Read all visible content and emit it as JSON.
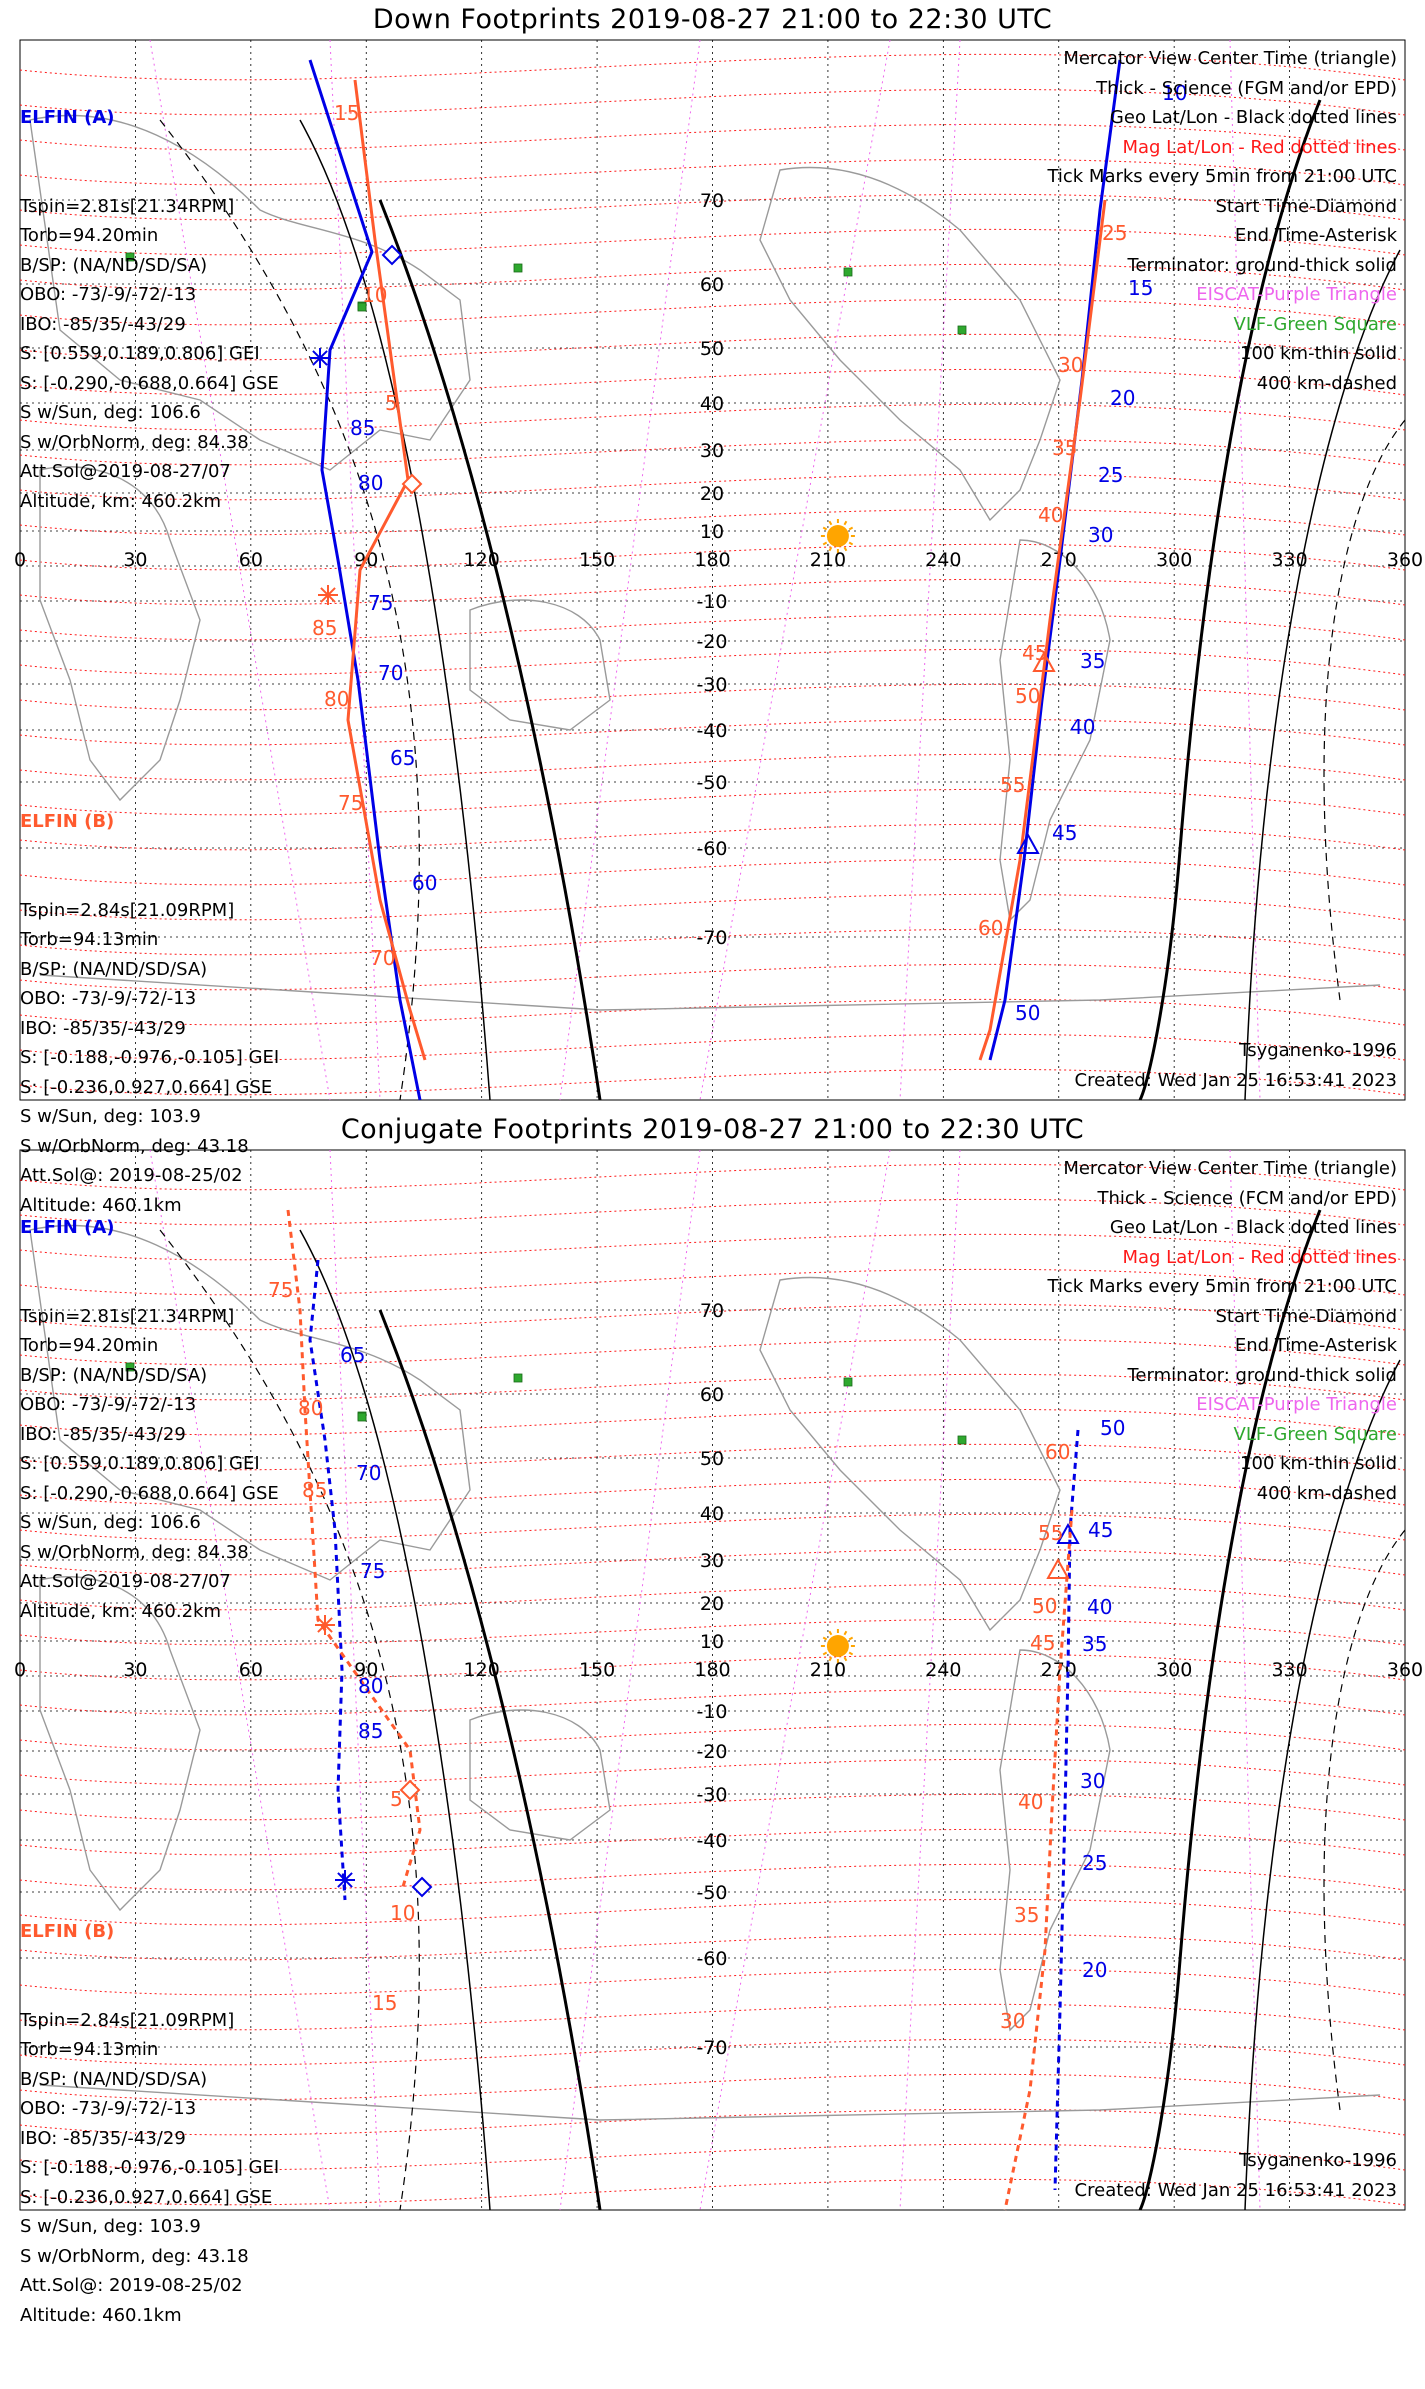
{
  "colors": {
    "sat_a": "#0000e6",
    "sat_b": "#ff5a2e",
    "mag_grid": "#ff1a1a",
    "eiscat": "#ee66ee",
    "vlf": "#2ea82e",
    "sun": "#ffa500"
  },
  "panels": [
    {
      "id": "down",
      "title": "Down Footprints 2019-08-27 21:00 to 22:30 UTC",
      "elfin_a": {
        "header": "ELFIN (A)",
        "lines": [
          "Tspin=2.81s[21.34RPM]",
          "Torb=94.20min",
          "B/SP: (NA/ND/SD/SA)",
          "OBO: -73/-9/-72/-13",
          "IBO: -85/35/-43/29",
          "S: [0.559,0.189,0.806] GEI",
          "S: [-0.290,-0.688,0.664] GSE",
          "S w/Sun, deg: 106.6",
          "S w/OrbNorm, deg: 84.38",
          "Att.Sol@2019-08-27/07",
          "Altitude, km: 460.2km"
        ]
      },
      "elfin_b": {
        "header": "ELFIN (B)",
        "lines": [
          "Tspin=2.84s[21.09RPM]",
          "Torb=94.13min",
          "B/SP: (NA/ND/SD/SA)",
          "OBO: -73/-9/-72/-13",
          "IBO: -85/35/-43/29",
          "S: [-0.188,-0.976,-0.105] GEI",
          "S: [-0.236,0.927,0.664] GSE",
          "S w/Sun, deg: 103.9",
          "S w/OrbNorm, deg: 43.18",
          "Att.Sol@: 2019-08-25/02",
          "Altitude: 460.1km"
        ]
      },
      "legend": [
        {
          "text": "Mercator View Center Time (triangle)",
          "style": "black"
        },
        {
          "text": "Thick - Science (FGM and/or EPD)",
          "style": "black"
        },
        {
          "text": "Geo Lat/Lon - Black dotted lines",
          "style": "black"
        },
        {
          "text": "Mag Lat/Lon - Red dotted lines",
          "style": "red"
        },
        {
          "text": "Tick Marks every 5min from 21:00 UTC",
          "style": "black"
        },
        {
          "text": "Start Time-Diamond",
          "style": "black"
        },
        {
          "text": "End Time-Asterisk",
          "style": "black"
        },
        {
          "text": "Terminator: ground-thick solid",
          "style": "black"
        },
        {
          "text": "EISCAT-Purple Triangle",
          "style": "purple"
        },
        {
          "text": "VLF-Green Square",
          "style": "green"
        },
        {
          "text": "100 km-thin solid",
          "style": "black"
        },
        {
          "text": "400 km-dashed",
          "style": "black"
        }
      ],
      "model": "Tsyganenko-1996",
      "created": "Created: Wed Jan 25 16:53:41 2023",
      "lon_labels": [
        "0",
        "30",
        "60",
        "90",
        "120",
        "150",
        "180",
        "210",
        "240",
        "270",
        "300",
        "330",
        "360"
      ],
      "lat_labels": [
        "70",
        "60",
        "50",
        "40",
        "30",
        "20",
        "10",
        "-10",
        "-20",
        "-30",
        "-40",
        "-50",
        "-60",
        "-70"
      ],
      "track_a_west_labels": [
        "85",
        "80",
        "75",
        "70",
        "65",
        "60"
      ],
      "track_a_east_labels": [
        "10",
        "15",
        "20",
        "25",
        "30",
        "35",
        "40",
        "45",
        "50"
      ],
      "track_b_west_labels": [
        "15",
        "10",
        "5",
        "85",
        "80",
        "75",
        "70"
      ],
      "track_b_east_labels": [
        "25",
        "30",
        "35",
        "40",
        "45",
        "50",
        "55",
        "60"
      ]
    },
    {
      "id": "conjugate",
      "title": "Conjugate Footprints 2019-08-27 21:00 to 22:30 UTC",
      "elfin_a": {
        "header": "ELFIN (A)",
        "lines": [
          "Tspin=2.81s[21.34RPM]",
          "Torb=94.20min",
          "B/SP: (NA/ND/SD/SA)",
          "OBO: -73/-9/-72/-13",
          "IBO: -85/35/-43/29",
          "S: [0.559,0.189,0.806] GEI",
          "S: [-0.290,-0.688,0.664] GSE",
          "S w/Sun, deg: 106.6",
          "S w/OrbNorm, deg: 84.38",
          "Att.Sol@2019-08-27/07",
          "Altitude, km: 460.2km"
        ]
      },
      "elfin_b": {
        "header": "ELFIN (B)",
        "lines": [
          "Tspin=2.84s[21.09RPM]",
          "Torb=94.13min",
          "B/SP: (NA/ND/SD/SA)",
          "OBO: -73/-9/-72/-13",
          "IBO: -85/35/-43/29",
          "S: [-0.188,-0.976,-0.105] GEI",
          "S: [-0.236,0.927,0.664] GSE",
          "S w/Sun, deg: 103.9",
          "S w/OrbNorm, deg: 43.18",
          "Att.Sol@: 2019-08-25/02",
          "Altitude: 460.1km"
        ]
      },
      "legend": [
        {
          "text": "Mercator View Center Time (triangle)",
          "style": "black"
        },
        {
          "text": "Thick - Science (FCM and/or EPD)",
          "style": "black"
        },
        {
          "text": "Geo Lat/Lon - Black dotted lines",
          "style": "black"
        },
        {
          "text": "Mag Lat/Lon - Red dotted lines",
          "style": "red"
        },
        {
          "text": "Tick Marks every 5min from 21:00 UTC",
          "style": "black"
        },
        {
          "text": "Start Time-Diamond",
          "style": "black"
        },
        {
          "text": "End Time-Asterisk",
          "style": "black"
        },
        {
          "text": "Terminator: ground-thick solid",
          "style": "black"
        },
        {
          "text": "EISCAT-Purple Triangle",
          "style": "purple"
        },
        {
          "text": "VLF-Green Square",
          "style": "green"
        },
        {
          "text": "100 km-thin solid",
          "style": "black"
        },
        {
          "text": "400 km-dashed",
          "style": "black"
        }
      ],
      "model": "Tsyganenko-1996",
      "created": "Created: Wed Jan 25 16:53:41 2023",
      "lon_labels": [
        "0",
        "30",
        "60",
        "90",
        "120",
        "150",
        "180",
        "210",
        "240",
        "270",
        "300",
        "330",
        "360"
      ],
      "lat_labels": [
        "70",
        "60",
        "50",
        "40",
        "30",
        "20",
        "10",
        "-10",
        "-20",
        "-30",
        "-40",
        "-50",
        "-60",
        "-70"
      ],
      "track_a_west_labels": [
        "65",
        "70",
        "75",
        "80",
        "85"
      ],
      "track_a_east_labels": [
        "50",
        "45",
        "40",
        "35",
        "30",
        "25",
        "20"
      ],
      "track_b_west_labels": [
        "75",
        "80",
        "85",
        "5",
        "10",
        "15"
      ],
      "track_b_east_labels": [
        "60",
        "55",
        "50",
        "45",
        "40",
        "35",
        "30"
      ]
    }
  ]
}
